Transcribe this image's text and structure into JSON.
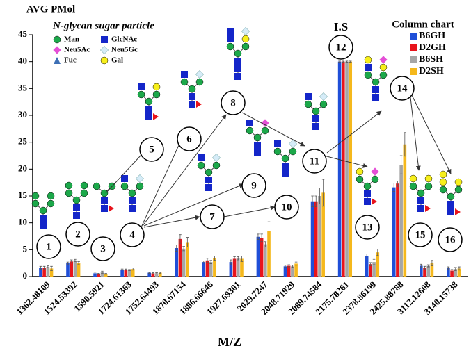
{
  "chart_data": {
    "type": "bar",
    "y_label": "AVG PMol",
    "x_label": "M/Z",
    "annotation": "I.S",
    "legend_title": "Column chart",
    "key_title": "N-glycan sugar particle",
    "key_items": [
      "Man",
      "GlcNAc",
      "Neu5Ac",
      "Neu5Gc",
      "Fuc",
      "Gal"
    ],
    "structure_labels": [
      "1",
      "2",
      "3",
      "4",
      "5",
      "6",
      "7",
      "8",
      "9",
      "10",
      "11",
      "12",
      "13",
      "14",
      "15",
      "16"
    ],
    "categories": [
      "1362.48109",
      "1524.53392",
      "1590.5921",
      "1724.61363",
      "1752.64493",
      "1870.67154",
      "1886.66646",
      "1927.69301",
      "2029.7247",
      "2048.71929",
      "2089.74584",
      "2175.78261",
      "2378.86199",
      "2425.88788",
      "3112.12608",
      "3140.15738"
    ],
    "series": [
      {
        "name": "B6GH",
        "color": "#1f4fd8",
        "values": [
          1.6,
          2.5,
          0.6,
          1.3,
          0.7,
          5.3,
          2.7,
          2.7,
          7.4,
          1.9,
          14.0,
          40,
          3.8,
          16.6,
          2.0,
          1.6
        ],
        "errors": [
          0.3,
          0.2,
          0.2,
          0.1,
          0.1,
          0.6,
          0.2,
          0.4,
          0.5,
          0.2,
          1.0,
          0.1,
          0.4,
          0.8,
          0.3,
          0.2
        ]
      },
      {
        "name": "D2GH",
        "color": "#e8141c",
        "values": [
          1.6,
          2.8,
          0.5,
          1.3,
          0.6,
          7.0,
          3.0,
          3.3,
          7.2,
          2.0,
          14.0,
          40,
          2.3,
          17.3,
          1.6,
          1.1
        ],
        "errors": [
          0.3,
          0.3,
          0.1,
          0.1,
          0.1,
          0.8,
          0.4,
          0.4,
          0.7,
          0.2,
          1.0,
          0.1,
          0.3,
          0.5,
          0.3,
          0.2
        ]
      },
      {
        "name": "B6SH",
        "color": "#a6a6a6",
        "values": [
          1.8,
          3.0,
          0.8,
          1.2,
          0.6,
          5.2,
          2.7,
          3.4,
          6.0,
          1.9,
          15.0,
          40,
          2.7,
          20.8,
          2.0,
          1.4
        ],
        "errors": [
          0.2,
          0.2,
          0.2,
          0.1,
          0.1,
          0.4,
          0.3,
          0.3,
          0.5,
          0.2,
          1.5,
          0.1,
          0.5,
          1.7,
          0.2,
          0.3
        ]
      },
      {
        "name": "D2SH",
        "color": "#f5b81c",
        "values": [
          1.5,
          2.5,
          0.5,
          1.4,
          0.7,
          6.4,
          3.4,
          3.3,
          8.5,
          2.4,
          15.6,
          40,
          4.5,
          24.6,
          2.5,
          1.5
        ],
        "errors": [
          0.4,
          0.3,
          0.1,
          0.2,
          0.1,
          0.9,
          0.4,
          0.5,
          1.7,
          0.3,
          2.5,
          0.1,
          0.6,
          2.2,
          0.5,
          0.3
        ]
      }
    ],
    "ylim": [
      0,
      45
    ],
    "yticks": [
      0,
      5,
      10,
      15,
      20,
      25,
      30,
      35,
      40,
      45
    ]
  }
}
